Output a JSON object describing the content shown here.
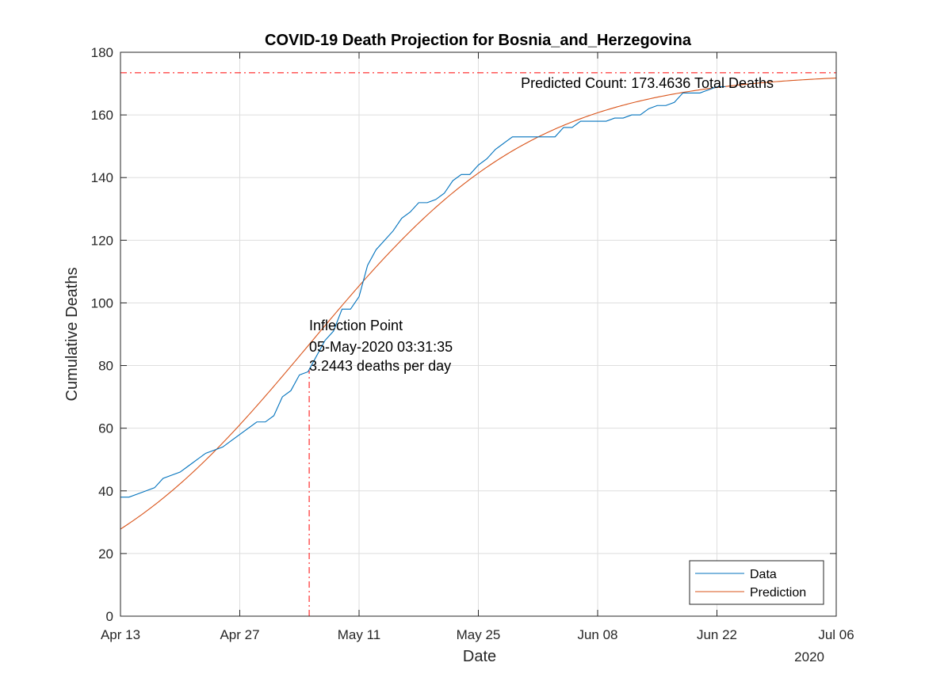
{
  "chart_data": {
    "type": "line",
    "title": "COVID-19 Death Projection for Bosnia_and_Herzegovina",
    "xlabel": "Date",
    "ylabel": "Cumulative Deaths",
    "x_axis_type": "date",
    "x_year_label": "2020",
    "xlim": [
      "2020-04-13",
      "2020-07-06"
    ],
    "ylim": [
      0,
      180
    ],
    "x_ticks": [
      {
        "date": "2020-04-13",
        "label": "Apr 13"
      },
      {
        "date": "2020-04-27",
        "label": "Apr 27"
      },
      {
        "date": "2020-05-11",
        "label": "May 11"
      },
      {
        "date": "2020-05-25",
        "label": "May 25"
      },
      {
        "date": "2020-06-08",
        "label": "Jun 08"
      },
      {
        "date": "2020-06-22",
        "label": "Jun 22"
      },
      {
        "date": "2020-07-06",
        "label": "Jul 06"
      }
    ],
    "y_ticks": [
      0,
      20,
      40,
      60,
      80,
      100,
      120,
      140,
      160,
      180
    ],
    "grid": true,
    "legend_position": "bottom-right",
    "series": [
      {
        "name": "Data",
        "color": "#0072BD",
        "points": [
          [
            "2020-04-13",
            38
          ],
          [
            "2020-04-14",
            38
          ],
          [
            "2020-04-15",
            39
          ],
          [
            "2020-04-16",
            40
          ],
          [
            "2020-04-17",
            41
          ],
          [
            "2020-04-18",
            44
          ],
          [
            "2020-04-19",
            45
          ],
          [
            "2020-04-20",
            46
          ],
          [
            "2020-04-21",
            48
          ],
          [
            "2020-04-22",
            50
          ],
          [
            "2020-04-23",
            52
          ],
          [
            "2020-04-24",
            53
          ],
          [
            "2020-04-25",
            54
          ],
          [
            "2020-04-26",
            56
          ],
          [
            "2020-04-27",
            58
          ],
          [
            "2020-04-28",
            60
          ],
          [
            "2020-04-29",
            62
          ],
          [
            "2020-04-30",
            62
          ],
          [
            "2020-05-01",
            64
          ],
          [
            "2020-05-02",
            70
          ],
          [
            "2020-05-03",
            72
          ],
          [
            "2020-05-04",
            77
          ],
          [
            "2020-05-05",
            78
          ],
          [
            "2020-05-06",
            83
          ],
          [
            "2020-05-07",
            88
          ],
          [
            "2020-05-08",
            91
          ],
          [
            "2020-05-09",
            98
          ],
          [
            "2020-05-10",
            98
          ],
          [
            "2020-05-11",
            102
          ],
          [
            "2020-05-12",
            112
          ],
          [
            "2020-05-13",
            117
          ],
          [
            "2020-05-14",
            120
          ],
          [
            "2020-05-15",
            123
          ],
          [
            "2020-05-16",
            127
          ],
          [
            "2020-05-17",
            129
          ],
          [
            "2020-05-18",
            132
          ],
          [
            "2020-05-19",
            132
          ],
          [
            "2020-05-20",
            133
          ],
          [
            "2020-05-21",
            135
          ],
          [
            "2020-05-22",
            139
          ],
          [
            "2020-05-23",
            141
          ],
          [
            "2020-05-24",
            141
          ],
          [
            "2020-05-25",
            144
          ],
          [
            "2020-05-26",
            146
          ],
          [
            "2020-05-27",
            149
          ],
          [
            "2020-05-28",
            151
          ],
          [
            "2020-05-29",
            153
          ],
          [
            "2020-05-30",
            153
          ],
          [
            "2020-05-31",
            153
          ],
          [
            "2020-06-01",
            153
          ],
          [
            "2020-06-02",
            153
          ],
          [
            "2020-06-03",
            153
          ],
          [
            "2020-06-04",
            156
          ],
          [
            "2020-06-05",
            156
          ],
          [
            "2020-06-06",
            158
          ],
          [
            "2020-06-07",
            158
          ],
          [
            "2020-06-08",
            158
          ],
          [
            "2020-06-09",
            158
          ],
          [
            "2020-06-10",
            159
          ],
          [
            "2020-06-11",
            159
          ],
          [
            "2020-06-12",
            160
          ],
          [
            "2020-06-13",
            160
          ],
          [
            "2020-06-14",
            162
          ],
          [
            "2020-06-15",
            163
          ],
          [
            "2020-06-16",
            163
          ],
          [
            "2020-06-17",
            164
          ],
          [
            "2020-06-18",
            167
          ],
          [
            "2020-06-19",
            167
          ],
          [
            "2020-06-20",
            167
          ],
          [
            "2020-06-21",
            168
          ],
          [
            "2020-06-22",
            169
          ],
          [
            "2020-06-23",
            169
          ]
        ]
      },
      {
        "name": "Prediction",
        "color": "#D95319",
        "model": "logistic",
        "asymptote": 173.4636,
        "midpoint": "2020-05-05T03:31:35",
        "scale_days": 13.37,
        "x_range": [
          "2020-04-13",
          "2020-07-06"
        ]
      }
    ],
    "reference_lines": [
      {
        "orientation": "horizontal",
        "value": 173.4636,
        "color": "#FF0000",
        "style": "dash-dot"
      },
      {
        "orientation": "vertical",
        "value": "2020-05-05T03:31:35",
        "y_range": [
          0,
          78.5
        ],
        "color": "#FF0000",
        "style": "dash-dot"
      }
    ],
    "annotations": {
      "predicted_count": "Predicted Count: 173.4636 Total Deaths",
      "inflection_lines": [
        "Inflection Point",
        "05-May-2020 03:31:35",
        "3.2443 deaths per day"
      ]
    }
  }
}
